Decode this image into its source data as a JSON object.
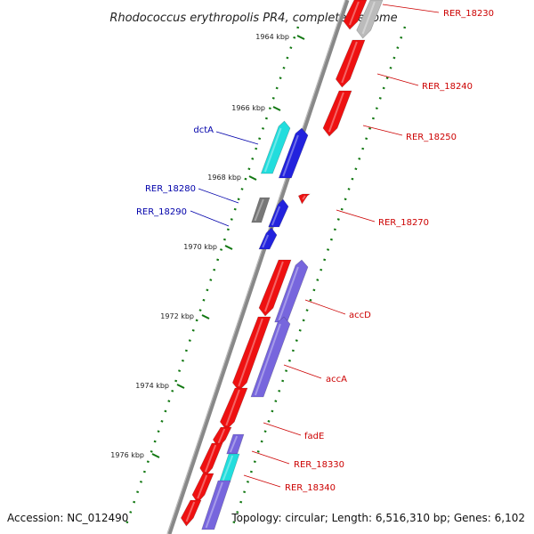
{
  "title": "Rhodococcus erythropolis PR4, complete genome",
  "footer": {
    "accession": "Accession: NC_012490",
    "summary": "Topology: circular; Length: 6,516,310 bp; Genes: 6,102"
  },
  "ticks": [
    "1964 kbp",
    "1966 kbp",
    "1968 kbp",
    "1970 kbp",
    "1972 kbp",
    "1974 kbp",
    "1976 kbp"
  ],
  "gene_labels": [
    {
      "text": "RER_18230",
      "color": "#cc0000"
    },
    {
      "text": "RER_18240",
      "color": "#cc0000"
    },
    {
      "text": "RER_18250",
      "color": "#cc0000"
    },
    {
      "text": "RER_18270",
      "color": "#cc0000"
    },
    {
      "text": "accD",
      "color": "#cc0000"
    },
    {
      "text": "accA",
      "color": "#cc0000"
    },
    {
      "text": "fadE",
      "color": "#cc0000"
    },
    {
      "text": "RER_18330",
      "color": "#cc0000"
    },
    {
      "text": "RER_18340",
      "color": "#cc0000"
    },
    {
      "text": "dctA",
      "color": "#0000aa"
    },
    {
      "text": "RER_18280",
      "color": "#0000aa"
    },
    {
      "text": "RER_18290",
      "color": "#0000aa"
    }
  ],
  "colors": {
    "cds": "#ee1111",
    "rna": "#2222dd",
    "cyan": "#22dddd",
    "purple": "#7766dd",
    "gray": "#777777",
    "backbone": "#888888",
    "tick": "#117711"
  }
}
